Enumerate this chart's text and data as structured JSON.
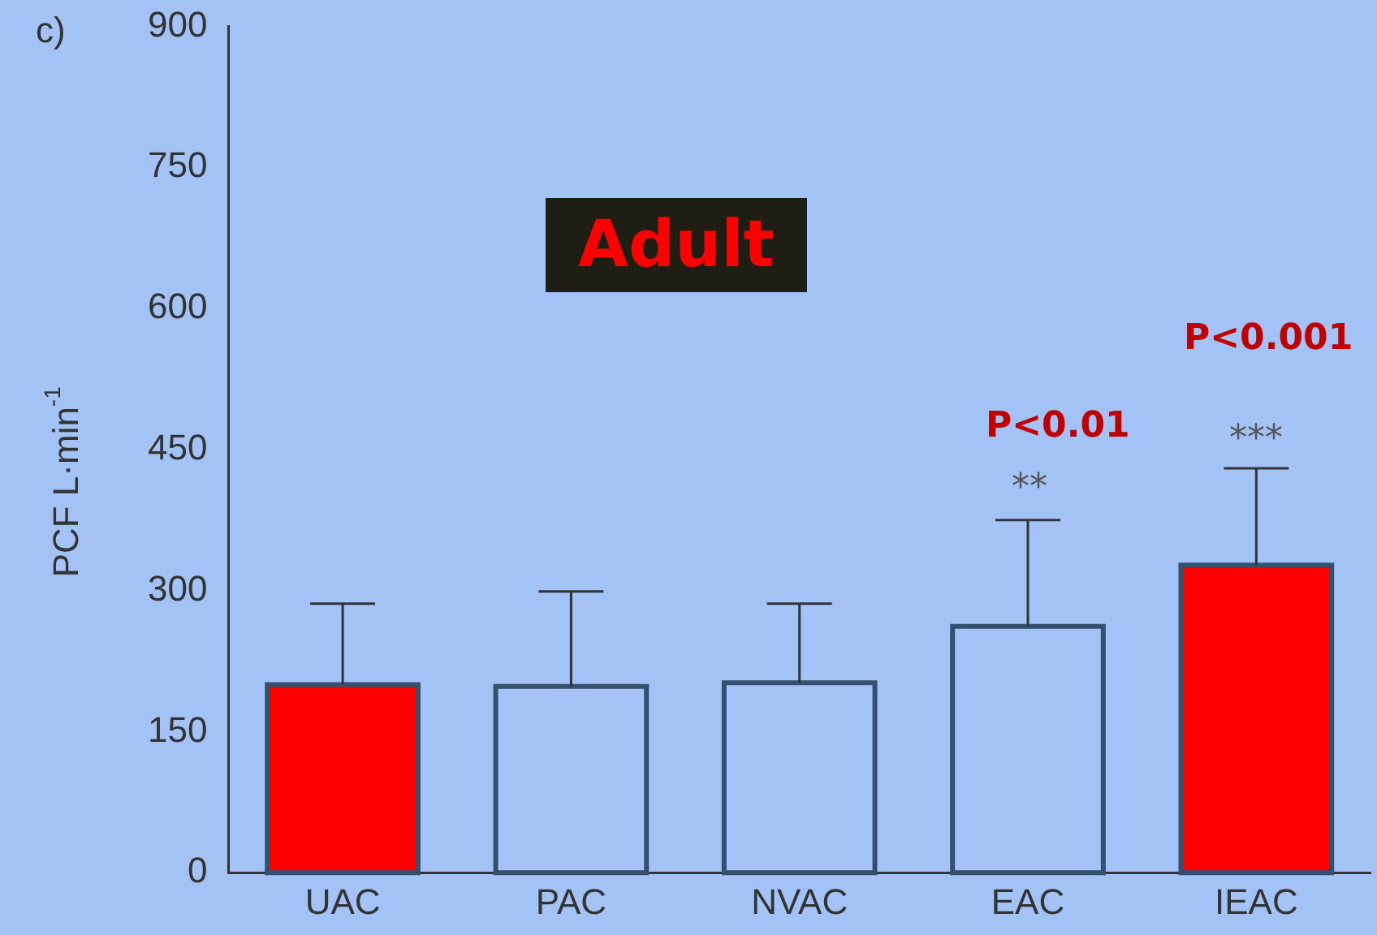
{
  "chart_data": {
    "type": "bar",
    "ylabel": "PCF L·min$^{-1}$",
    "categories": [
      "UAC",
      "PAC",
      "NVAC",
      "EAC",
      "IEAC"
    ],
    "values": [
      200,
      198,
      202,
      262,
      327
    ],
    "colors": [
      "#ff0000",
      "#a3c2f5",
      "#a3c2f5",
      "#a3c2f5",
      "#ff0000"
    ],
    "errors": [
      [
        200,
        286
      ],
      [
        198,
        299
      ],
      [
        202,
        286
      ],
      [
        262,
        375
      ],
      [
        327,
        430
      ]
    ],
    "ylim": [
      0,
      900
    ],
    "yticks": [
      0,
      150,
      300,
      450,
      600,
      750,
      900
    ],
    "grid": false,
    "legend": false,
    "annotations": [
      "c)",
      "Adult",
      "P<0.01",
      "**",
      "P<0.001",
      "***"
    ]
  }
}
